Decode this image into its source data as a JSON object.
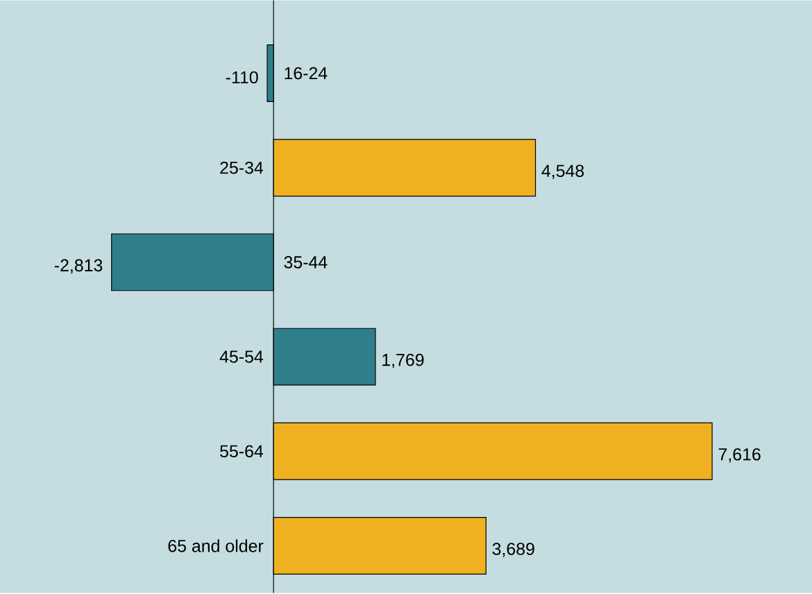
{
  "chart_data": {
    "type": "bar",
    "orientation": "horizontal",
    "categories": [
      "16-24",
      "25-34",
      "35-44",
      "45-54",
      "55-64",
      "65 and older"
    ],
    "values": [
      -110,
      4548,
      -2813,
      1769,
      7616,
      3689
    ],
    "colors": [
      "#2e7f8b",
      "#efb122",
      "#2e7f8b",
      "#2e7f8b",
      "#efb122",
      "#efb122"
    ],
    "value_labels": [
      "-110",
      "4,548",
      "-2,813",
      "1,769",
      "7,616",
      "3,689"
    ],
    "xlim": [
      -4750,
      9350
    ]
  }
}
